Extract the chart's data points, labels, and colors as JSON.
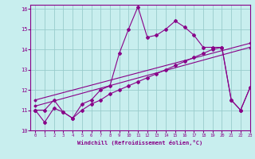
{
  "xlabel": "Windchill (Refroidissement éolien,°C)",
  "bg_color": "#c8eeee",
  "line_color": "#880088",
  "grid_color": "#99cccc",
  "xlim": [
    -0.5,
    23
  ],
  "ylim": [
    10,
    16.2
  ],
  "yticks": [
    10,
    11,
    12,
    13,
    14,
    15,
    16
  ],
  "xticks": [
    0,
    1,
    2,
    3,
    4,
    5,
    6,
    7,
    8,
    9,
    10,
    11,
    12,
    13,
    14,
    15,
    16,
    17,
    18,
    19,
    20,
    21,
    22,
    23
  ],
  "line1_x": [
    0,
    1,
    2,
    3,
    4,
    5,
    6,
    7,
    8,
    9,
    10,
    11,
    12,
    13,
    14,
    15,
    16,
    17,
    18,
    19,
    20,
    21,
    22,
    23
  ],
  "line1_y": [
    11.0,
    10.4,
    11.1,
    10.9,
    10.6,
    11.3,
    11.5,
    12.0,
    12.2,
    13.8,
    15.0,
    16.1,
    14.6,
    14.7,
    15.0,
    15.4,
    15.1,
    14.7,
    14.1,
    14.1,
    14.1,
    11.5,
    11.0,
    12.1
  ],
  "line2_x": [
    0,
    23
  ],
  "line2_y": [
    11.2,
    14.1
  ],
  "line3_x": [
    0,
    23
  ],
  "line3_y": [
    11.5,
    14.3
  ],
  "line4_x": [
    0,
    1,
    2,
    3,
    4,
    5,
    6,
    7,
    8,
    9,
    10,
    11,
    12,
    13,
    14,
    15,
    16,
    17,
    18,
    19,
    20,
    21,
    22,
    23
  ],
  "line4_y": [
    11.0,
    11.0,
    11.5,
    10.9,
    10.6,
    11.0,
    11.3,
    11.5,
    11.8,
    12.0,
    12.2,
    12.4,
    12.6,
    12.8,
    13.0,
    13.2,
    13.4,
    13.6,
    13.8,
    14.0,
    14.1,
    11.5,
    11.0,
    12.1
  ]
}
